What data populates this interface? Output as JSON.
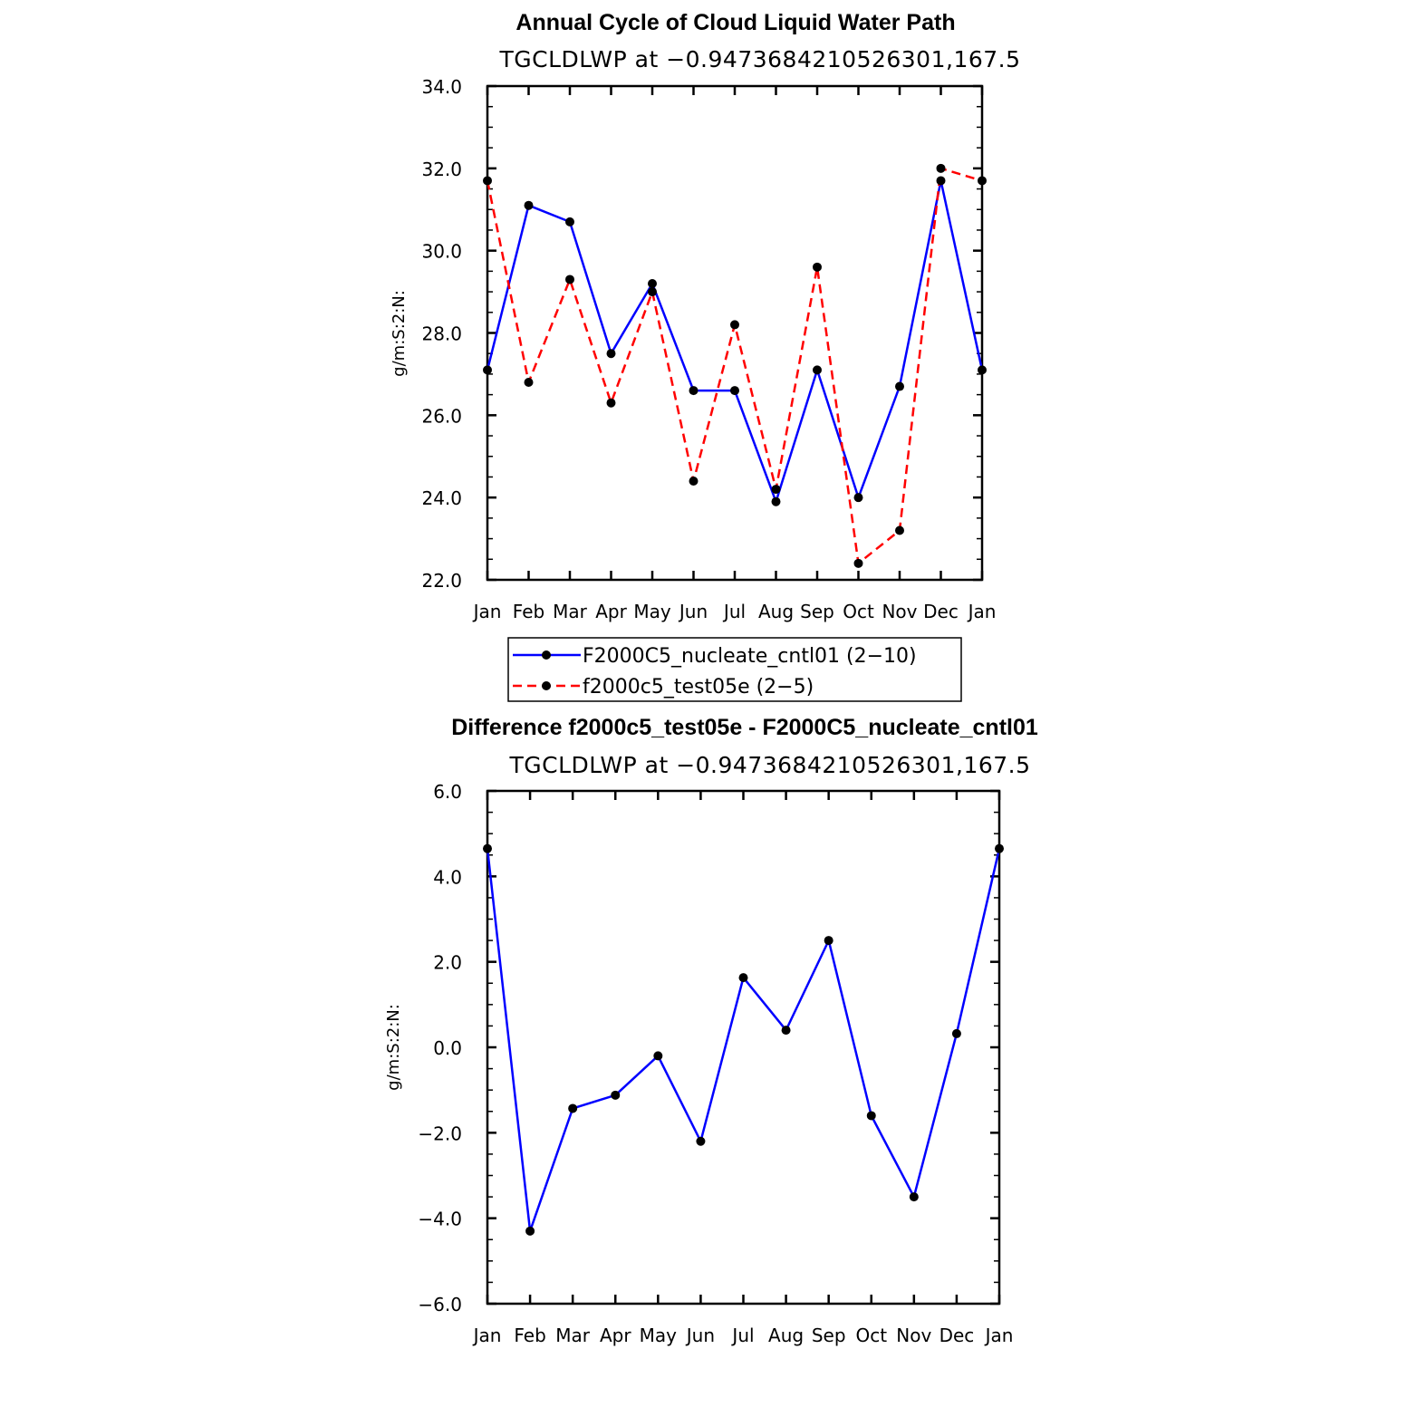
{
  "chart_data": [
    {
      "type": "line",
      "title": "Annual Cycle of Cloud Liquid Water Path",
      "subtitle": "TGCLDLWP at −0.9473684210526301,167.5",
      "xlabel": "",
      "ylabel": "g/m:S:2:N:",
      "categories": [
        "Jan",
        "Feb",
        "Mar",
        "Apr",
        "May",
        "Jun",
        "Jul",
        "Aug",
        "Sep",
        "Oct",
        "Nov",
        "Dec",
        "Jan"
      ],
      "ylim": [
        22.0,
        34.0
      ],
      "yticks": [
        "22.0",
        "24.0",
        "26.0",
        "28.0",
        "30.0",
        "32.0",
        "34.0"
      ],
      "series": [
        {
          "name": "F2000C5_nucleate_cntl01 (2−10)",
          "color": "#0000ff",
          "dash": "solid",
          "values": [
            27.1,
            31.1,
            30.7,
            27.5,
            29.2,
            26.6,
            26.6,
            23.9,
            27.1,
            24.0,
            26.7,
            31.7,
            27.1
          ]
        },
        {
          "name": "f2000c5_test05e (2−5)",
          "color": "#ff0000",
          "dash": "dashed",
          "values": [
            31.7,
            26.8,
            29.3,
            26.3,
            29.0,
            24.4,
            28.2,
            24.2,
            29.6,
            22.4,
            23.2,
            32.0,
            31.7
          ]
        }
      ],
      "legend": "bottom"
    },
    {
      "type": "line",
      "title": "Difference f2000c5_test05e - F2000C5_nucleate_cntl01",
      "subtitle": "TGCLDLWP at −0.9473684210526301,167.5",
      "xlabel": "",
      "ylabel": "g/m:S:2:N:",
      "categories": [
        "Jan",
        "Feb",
        "Mar",
        "Apr",
        "May",
        "Jun",
        "Jul",
        "Aug",
        "Sep",
        "Oct",
        "Nov",
        "Dec",
        "Jan"
      ],
      "ylim": [
        -6.0,
        6.0
      ],
      "yticks": [
        "−6.0",
        "−4.0",
        "−2.0",
        "0.0",
        "2.0",
        "4.0",
        "6.0"
      ],
      "series": [
        {
          "color": "#0000ff",
          "dash": "solid",
          "values": [
            4.65,
            -4.3,
            -1.43,
            -1.12,
            -0.2,
            -2.2,
            1.63,
            0.4,
            2.5,
            -1.6,
            -3.5,
            0.32,
            4.65
          ]
        }
      ]
    }
  ]
}
